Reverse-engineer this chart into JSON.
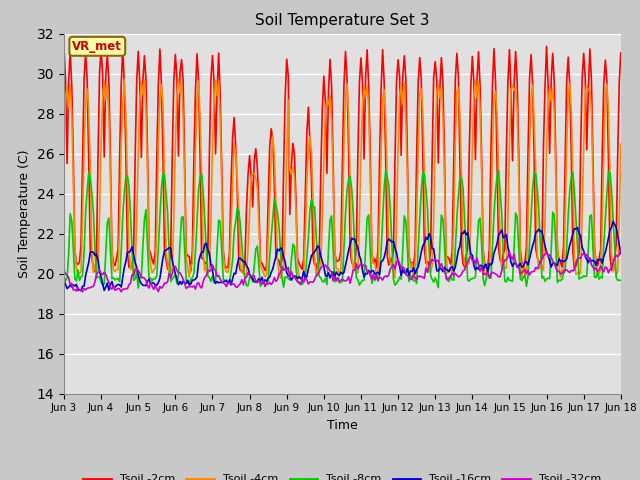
{
  "title": "Soil Temperature Set 3",
  "xlabel": "Time",
  "ylabel": "Soil Temperature (C)",
  "ylim": [
    14,
    32
  ],
  "yticks": [
    14,
    16,
    18,
    20,
    22,
    24,
    26,
    28,
    30,
    32
  ],
  "fig_bg": "#c8c8c8",
  "plot_bg": "#e0e0e0",
  "annotation_text": "VR_met",
  "annotation_bg": "#ffffaa",
  "annotation_border": "#886600",
  "series_colors": {
    "Tsoil -2cm": "#ff0000",
    "Tsoil -4cm": "#ff8800",
    "Tsoil -8cm": "#00cc00",
    "Tsoil -16cm": "#0000cc",
    "Tsoil -32cm": "#cc00cc"
  },
  "x_tick_labels": [
    "Jun 3",
    "Jun 4",
    "Jun 5",
    "Jun 6",
    "Jun 7",
    "Jun 8",
    "Jun 9",
    "Jun 10",
    "Jun 11",
    "Jun 12",
    "Jun 13",
    "Jun 14",
    "Jun 15",
    "Jun 16",
    "Jun 17",
    "Jun 18"
  ],
  "x_tick_positions": [
    0,
    24,
    48,
    72,
    96,
    120,
    144,
    168,
    192,
    216,
    240,
    264,
    288,
    312,
    336,
    360
  ],
  "figsize": [
    6.4,
    4.8
  ],
  "dpi": 100
}
